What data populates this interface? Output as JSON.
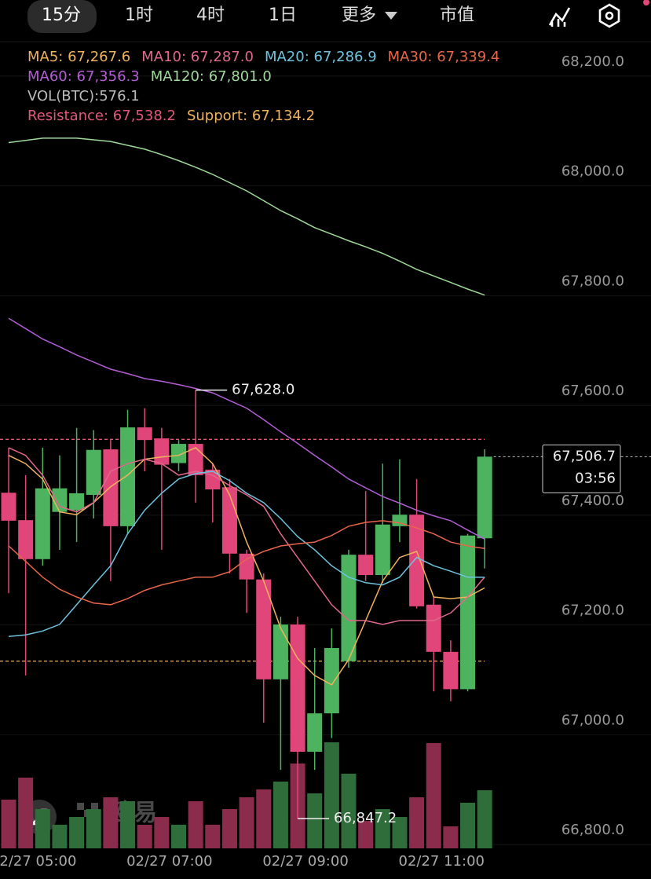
{
  "tabs": [
    "15分",
    "1时",
    "4时",
    "1日",
    "更多",
    "市值"
  ],
  "watermark": "欧易",
  "chart_data": {
    "type": "candlestick",
    "up_color": "#4db35e",
    "down_color": "#e0467a",
    "up_volume_color": "#2f6e3a",
    "down_volume_color": "#8c2c4d",
    "categories": [
      null,
      "02/27 05:00",
      null,
      null,
      null,
      null,
      null,
      null,
      null,
      "02/27 07:00",
      null,
      null,
      null,
      null,
      null,
      null,
      null,
      "02/27 09:00",
      null,
      null,
      null,
      null,
      null,
      null,
      null,
      "02/27 11:00",
      null,
      null,
      null
    ],
    "open": [
      67441,
      67391,
      67320,
      67406,
      67409,
      67437,
      67520,
      67380,
      67560,
      67540,
      67495,
      67530,
      67483,
      67451,
      67330,
      67283,
      67101,
      67201,
      66969,
      67039,
      67134,
      67328,
      67291,
      67380,
      67401,
      67237,
      67151,
      67083,
      67358
    ],
    "high": [
      67523,
      67473,
      67523,
      67509,
      67559,
      67555,
      67537,
      67592,
      67595,
      67559,
      67537,
      67628,
      67494,
      67466,
      67337,
      67294,
      67215,
      67215,
      67158,
      67194,
      67337,
      67444,
      67494,
      67502,
      67466,
      67251,
      67172,
      67366,
      67520
    ],
    "low": [
      67258,
      67108,
      67308,
      67337,
      67351,
      67394,
      67280,
      67366,
      67480,
      67337,
      67480,
      67423,
      67387,
      67294,
      67222,
      67022,
      66936,
      66847.2,
      66936,
      66994,
      67122,
      67280,
      67277,
      67351,
      67230,
      67079,
      67061,
      67079,
      67303
    ],
    "close": [
      67390,
      67320,
      67449,
      67449,
      67440,
      67519,
      67380,
      67560,
      67537,
      67492,
      67530,
      67473,
      67447,
      67330,
      67283,
      67101,
      67201,
      66969,
      67039,
      67158,
      67328,
      67291,
      67383,
      67401,
      67234,
      67151,
      67083,
      67363,
      67506.7
    ],
    "legend_separator": ": ",
    "series": [
      {
        "name": "MA5",
        "color": "#f0b35c",
        "value_label": "67,267.6",
        "values": [
          67509,
          67494,
          67466,
          67406,
          67401,
          67423,
          67452,
          67473,
          67502,
          67506,
          67509,
          67523,
          67494,
          67437,
          67351,
          67280,
          67194,
          67139,
          67108,
          67091,
          67137,
          67208,
          67280,
          67323,
          67334,
          67251,
          67248,
          67251,
          67267.6
        ]
      },
      {
        "name": "MA10",
        "color": "#e0688c",
        "value_label": "67,287.0",
        "values": [
          67523,
          67509,
          67473,
          67416,
          67406,
          67423,
          67480,
          67494,
          67502,
          67494,
          67473,
          67480,
          67473,
          67454,
          67437,
          67416,
          67366,
          67323,
          67280,
          67237,
          67208,
          67208,
          67201,
          67208,
          67208,
          67208,
          67222,
          67251,
          67287.0
        ]
      },
      {
        "name": "MA20",
        "color": "#6fc3df",
        "value_label": "67,286.9",
        "values": [
          67179,
          67182,
          67189,
          67201,
          67237,
          67273,
          67308,
          67366,
          67409,
          67440,
          67466,
          67476,
          67480,
          67463,
          67440,
          67423,
          67394,
          67361,
          67337,
          67308,
          67287,
          67277,
          67273,
          67287,
          67323,
          67308,
          67298,
          67287,
          67286.9
        ]
      },
      {
        "name": "MA30",
        "color": "#e8664a",
        "value_label": "67,339.4",
        "values": [
          67344,
          67316,
          67287,
          67265,
          67251,
          67240,
          67237,
          67248,
          67263,
          67273,
          67280,
          67287,
          67287,
          67297,
          67320,
          67334,
          67344,
          67348,
          67351,
          67363,
          67380,
          67387,
          67390,
          67386,
          67377,
          67366,
          67351,
          67344,
          67339.4
        ]
      },
      {
        "name": "MA60",
        "color": "#b25ed4",
        "value_label": "67,356.3",
        "values": [
          67759,
          67740,
          67721,
          67707,
          67692,
          67679,
          67666,
          67658,
          67649,
          67644,
          67638,
          67631,
          67623,
          67609,
          67595,
          67574,
          67552,
          67531,
          67509,
          67488,
          67466,
          67450,
          67434,
          67422,
          67409,
          67399,
          67390,
          67373,
          67356.3
        ]
      },
      {
        "name": "MA120",
        "color": "#9fd89a",
        "value_label": "67,801.0",
        "values": [
          68079,
          68083,
          68087,
          68087,
          68087,
          68084,
          68081,
          68074,
          68067,
          68057,
          68046,
          68034,
          68021,
          68006,
          67991,
          67973,
          67955,
          67940,
          67924,
          67912,
          67900,
          67889,
          67877,
          67863,
          67848,
          67836,
          67824,
          67812,
          67801.0
        ]
      }
    ],
    "volume": {
      "name": "VOL(BTC)",
      "separator": ":",
      "color": "#bbbbbb",
      "values": [
        483,
        701,
        389,
        234,
        311,
        389,
        506,
        467,
        234,
        311,
        234,
        467,
        234,
        389,
        506,
        584,
        662,
        841,
        545,
        1051,
        740,
        272,
        389,
        311,
        506,
        1043,
        218,
        452,
        576.1
      ]
    },
    "levels": [
      {
        "name": "Resistance",
        "value": 67538.2,
        "label": "67,538.2",
        "color": "#e2577a"
      },
      {
        "name": "Support",
        "value": 67134.2,
        "label": "67,134.2",
        "color": "#f0b35c"
      }
    ],
    "high_marker": {
      "value": 67628,
      "label": "67,628.0"
    },
    "low_marker": {
      "value": 66847.2,
      "label": "66,847.2"
    },
    "last_price": {
      "value": 67506.7,
      "label": "67,506.7",
      "countdown": "03:56"
    },
    "ylim": [
      66793,
      68260
    ],
    "yticks": [
      {
        "value": 68200,
        "label": "68,200.0"
      },
      {
        "value": 68000,
        "label": "68,000.0"
      },
      {
        "value": 67800,
        "label": "67,800.0"
      },
      {
        "value": 67600,
        "label": "67,600.0"
      },
      {
        "value": 67400,
        "label": "67,400.0"
      },
      {
        "value": 67200,
        "label": "67,200.0"
      },
      {
        "value": 67000,
        "label": "67,000.0"
      },
      {
        "value": 66800,
        "label": "66,800.0"
      }
    ],
    "grid": true
  }
}
